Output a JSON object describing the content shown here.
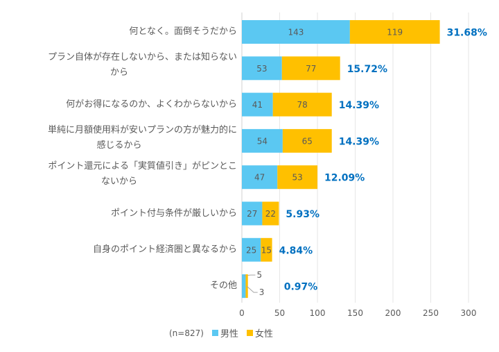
{
  "chart_data": {
    "type": "bar",
    "orientation": "horizontal",
    "stacked": true,
    "categories": [
      "何となく。面倒そうだから",
      "プラン自体が存在しないから、または知らないから",
      "何がお得になるのか、よくわからないから",
      "単純に月額使用料が安いプランの方が魅力的に感じるから",
      "ポイント還元による「実質値引き」がピンとこないから",
      "ポイント付与条件が厳しいから",
      "自身のポイント経済圏と異なるから",
      "その他"
    ],
    "category_lines": [
      [
        "何となく。面倒そうだから"
      ],
      [
        "プラン自体が存在しないから、または知らない",
        "から"
      ],
      [
        "何がお得になるのか、よくわからないから"
      ],
      [
        "単純に月額使用料が安いプランの方が魅力的に",
        "感じるから"
      ],
      [
        "ポイント還元による「実質値引き」がピンとこ",
        "ないから"
      ],
      [
        "ポイント付与条件が厳しいから"
      ],
      [
        "自身のポイント経済圏と異なるから"
      ],
      [
        "その他"
      ]
    ],
    "series": [
      {
        "name": "男性",
        "color": "#5BC8F2",
        "values": [
          143,
          53,
          41,
          54,
          47,
          27,
          25,
          5
        ]
      },
      {
        "name": "女性",
        "color": "#FFC000",
        "values": [
          119,
          77,
          78,
          65,
          53,
          22,
          15,
          3
        ]
      }
    ],
    "totals_percent": [
      "31.68%",
      "15.72%",
      "14.39%",
      "14.39%",
      "12.09%",
      "5.93%",
      "4.84%",
      "0.97%"
    ],
    "percent_color": "#0070C0",
    "xlim": [
      0,
      300
    ],
    "xticks": [
      0,
      50,
      100,
      150,
      200,
      250,
      300
    ],
    "grid": true,
    "legend_position": "bottom-left",
    "note": "(n=827)",
    "title": "",
    "xlabel": "",
    "ylabel": ""
  }
}
